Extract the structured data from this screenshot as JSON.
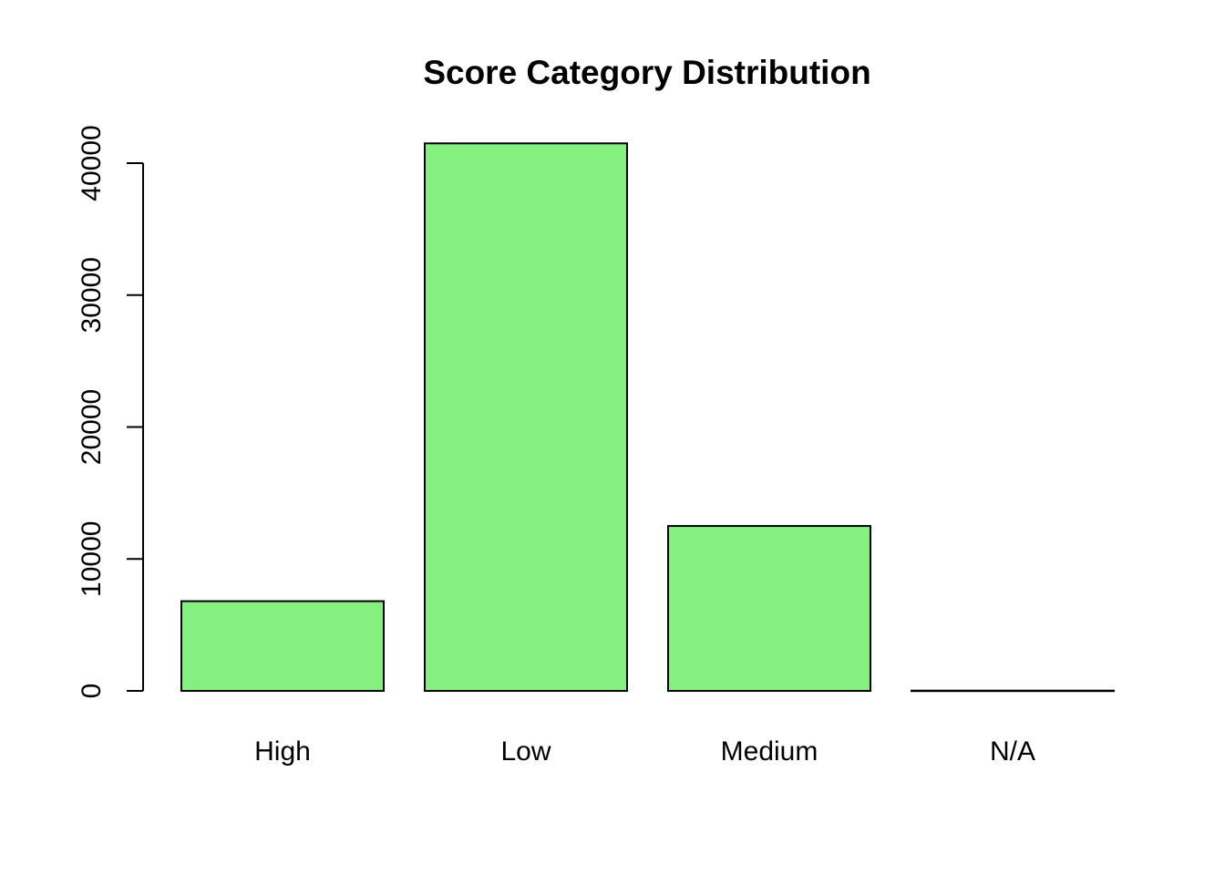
{
  "chart_data": {
    "type": "bar",
    "title": "Score Category Distribution",
    "xlabel": "",
    "ylabel": "",
    "categories": [
      "High",
      "Low",
      "Medium",
      "N/A"
    ],
    "values": [
      6800,
      41500,
      12500,
      20
    ],
    "ylim": [
      0,
      40000
    ],
    "yticks": [
      0,
      10000,
      20000,
      30000,
      40000
    ],
    "ytick_labels": [
      "0",
      "10000",
      "20000",
      "30000",
      "40000"
    ],
    "bar_color": "#85ef80",
    "grid": false,
    "legend": "none"
  }
}
